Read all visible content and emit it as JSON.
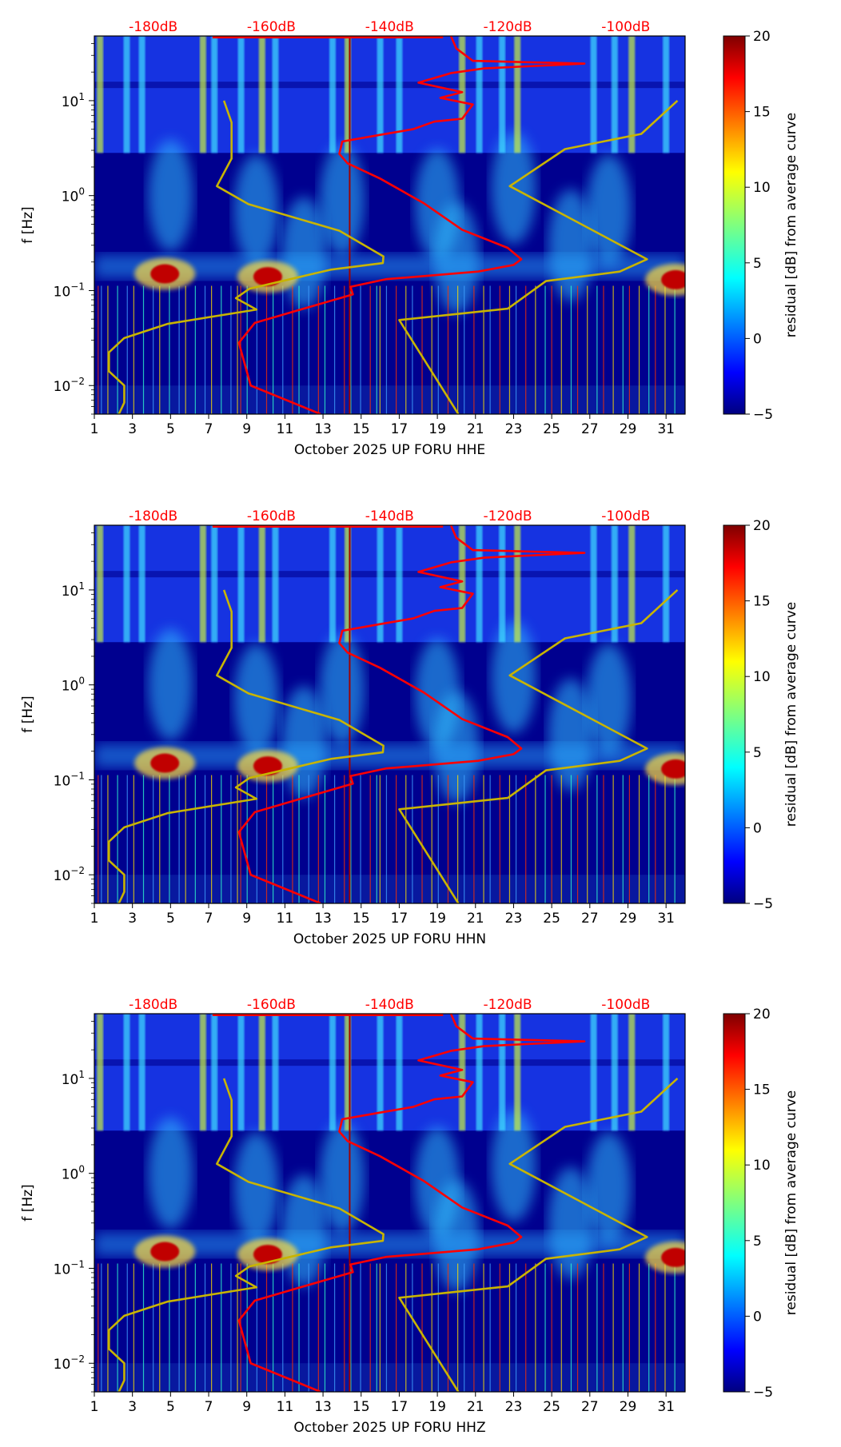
{
  "chart_data": [
    {
      "type": "heatmap",
      "xlabel": "October 2025 UP FORU  HHE",
      "ylabel": "f [Hz]",
      "colorbar_label": "residual [dB] from average curve",
      "xlim": [
        1,
        32
      ],
      "ylim_hz": [
        0.005,
        48
      ],
      "yscale": "log",
      "x_ticks": [
        "1",
        "3",
        "5",
        "7",
        "9",
        "11",
        "13",
        "15",
        "17",
        "19",
        "21",
        "23",
        "25",
        "27",
        "29",
        "31"
      ],
      "y_ticks": [
        {
          "base": "10",
          "exp": "1",
          "value": 10
        },
        {
          "base": "10",
          "exp": "0",
          "value": 1
        },
        {
          "base": "10",
          "exp": "−1",
          "value": 0.1
        },
        {
          "base": "10",
          "exp": "−2",
          "value": 0.01
        }
      ],
      "top_axis_ticks": [
        "-180dB",
        "-160dB",
        "-140dB",
        "-120dB",
        "-100dB"
      ],
      "top_axis_db_range": [
        -189.7,
        -99.7
      ]
    },
    {
      "type": "heatmap",
      "xlabel": "October 2025 UP FORU  HHN",
      "ylabel": "f [Hz]",
      "colorbar_label": "residual [dB] from average curve",
      "xlim": [
        1,
        32
      ],
      "ylim_hz": [
        0.005,
        48
      ],
      "yscale": "log",
      "x_ticks": [
        "1",
        "3",
        "5",
        "7",
        "9",
        "11",
        "13",
        "15",
        "17",
        "19",
        "21",
        "23",
        "25",
        "27",
        "29",
        "31"
      ],
      "y_ticks": [
        {
          "base": "10",
          "exp": "1",
          "value": 10
        },
        {
          "base": "10",
          "exp": "0",
          "value": 1
        },
        {
          "base": "10",
          "exp": "−1",
          "value": 0.1
        },
        {
          "base": "10",
          "exp": "−2",
          "value": 0.01
        }
      ],
      "top_axis_ticks": [
        "-180dB",
        "-160dB",
        "-140dB",
        "-120dB",
        "-100dB"
      ],
      "top_axis_db_range": [
        -189.7,
        -99.7
      ]
    },
    {
      "type": "heatmap",
      "xlabel": "October 2025 UP FORU  HHZ",
      "ylabel": "f [Hz]",
      "colorbar_label": "residual [dB] from average curve",
      "xlim": [
        1,
        32
      ],
      "ylim_hz": [
        0.005,
        48
      ],
      "yscale": "log",
      "x_ticks": [
        "1",
        "3",
        "5",
        "7",
        "9",
        "11",
        "13",
        "15",
        "17",
        "19",
        "21",
        "23",
        "25",
        "27",
        "29",
        "31"
      ],
      "y_ticks": [
        {
          "base": "10",
          "exp": "1",
          "value": 10
        },
        {
          "base": "10",
          "exp": "0",
          "value": 1
        },
        {
          "base": "10",
          "exp": "−1",
          "value": 0.1
        },
        {
          "base": "10",
          "exp": "−2",
          "value": 0.01
        }
      ],
      "top_axis_ticks": [
        "-180dB",
        "-160dB",
        "-140dB",
        "-120dB",
        "-100dB"
      ],
      "top_axis_db_range": [
        -189.7,
        -99.7
      ]
    }
  ],
  "colorbar": {
    "ticks": [
      "20",
      "15",
      "10",
      "5",
      "0",
      "−5"
    ],
    "range": [
      -5,
      20
    ],
    "colormap": "jet"
  },
  "overlay": {
    "noise_model_low_x_logf": [
      [
        7.8,
        1.0
      ],
      [
        8.2,
        0.77
      ],
      [
        8.2,
        0.39
      ],
      [
        7.43,
        0.1
      ],
      [
        9.09,
        -0.09
      ],
      [
        13.86,
        -0.37
      ],
      [
        16.17,
        -0.64
      ],
      [
        16.14,
        -0.71
      ],
      [
        13.4,
        -0.78
      ],
      [
        9.14,
        -0.98
      ],
      [
        8.43,
        -1.08
      ],
      [
        9.51,
        -1.2
      ],
      [
        4.86,
        -1.35
      ],
      [
        2.57,
        -1.5
      ],
      [
        1.77,
        -1.65
      ],
      [
        1.77,
        -1.85
      ],
      [
        2.57,
        -2.0
      ],
      [
        2.57,
        -2.18
      ],
      [
        2.29,
        -2.3
      ]
    ],
    "noise_model_high_x_logf": [
      [
        31.6,
        1.0
      ],
      [
        29.7,
        0.65
      ],
      [
        25.7,
        0.49
      ],
      [
        22.8,
        0.1
      ],
      [
        30.0,
        -0.67
      ],
      [
        28.57,
        -0.8
      ],
      [
        24.7,
        -0.9
      ],
      [
        22.7,
        -1.19
      ],
      [
        17.0,
        -1.31
      ],
      [
        20.1,
        -2.3
      ]
    ],
    "average_curve_db_logf": [
      [
        -151.7,
        -2.3
      ],
      [
        -163.5,
        -2.0
      ],
      [
        -165.5,
        -1.55
      ],
      [
        -162.8,
        -1.34
      ],
      [
        -154.5,
        -1.19
      ],
      [
        -146.2,
        -1.04
      ],
      [
        -146.6,
        -0.96
      ],
      [
        -140.6,
        -0.88
      ],
      [
        -125,
        -0.8
      ],
      [
        -119,
        -0.73
      ],
      [
        -117.7,
        -0.67
      ],
      [
        -120,
        -0.55
      ],
      [
        -127.7,
        -0.36
      ],
      [
        -134.2,
        -0.08
      ],
      [
        -141.6,
        0.18
      ],
      [
        -147.1,
        0.34
      ],
      [
        -148.5,
        0.44
      ],
      [
        -148,
        0.57
      ],
      [
        -141.6,
        0.64
      ],
      [
        -136,
        0.7
      ],
      [
        -132.4,
        0.78
      ],
      [
        -127.7,
        0.81
      ],
      [
        -125.9,
        0.96
      ],
      [
        -131.4,
        1.03
      ],
      [
        -127.7,
        1.09
      ],
      [
        -135.1,
        1.19
      ],
      [
        -129.6,
        1.29
      ],
      [
        -124,
        1.34
      ],
      [
        -107,
        1.39
      ],
      [
        -125.9,
        1.42
      ],
      [
        -128.7,
        1.55
      ],
      [
        -129.6,
        1.68
      ]
    ],
    "marker_day": 14.4,
    "colors": {
      "noise_model": "#c8b400",
      "average_curve": "#ff0000",
      "marker": "#a00000",
      "top_labels": "#ff0000"
    }
  },
  "features": {
    "bright_columns_days": [
      1.3,
      2.7,
      3.5,
      6.7,
      7.3,
      8.7,
      9.8,
      10.5,
      13.5,
      14.3,
      16,
      17,
      20.3,
      21.2,
      22.4,
      23.2,
      27.2,
      28.3,
      29.2,
      31
    ],
    "hotspots": [
      {
        "day": 4.7,
        "freq_hz": 0.15,
        "residual_db": 20
      },
      {
        "day": 10.1,
        "freq_hz": 0.14,
        "residual_db": 20
      },
      {
        "day": 31.5,
        "freq_hz": 0.13,
        "residual_db": 18
      }
    ],
    "diffuse_regions": [
      {
        "day": 5,
        "freq_hz": 1.0
      },
      {
        "day": 9.5,
        "freq_hz": 0.7
      },
      {
        "day": 14,
        "freq_hz": 0.9
      },
      {
        "day": 19,
        "freq_hz": 0.8
      },
      {
        "day": 23,
        "freq_hz": 1.2
      },
      {
        "day": 28,
        "freq_hz": 0.7
      },
      {
        "day": 12,
        "freq_hz": 0.25
      },
      {
        "day": 20,
        "freq_hz": 0.22
      },
      {
        "day": 26,
        "freq_hz": 0.3
      }
    ]
  }
}
